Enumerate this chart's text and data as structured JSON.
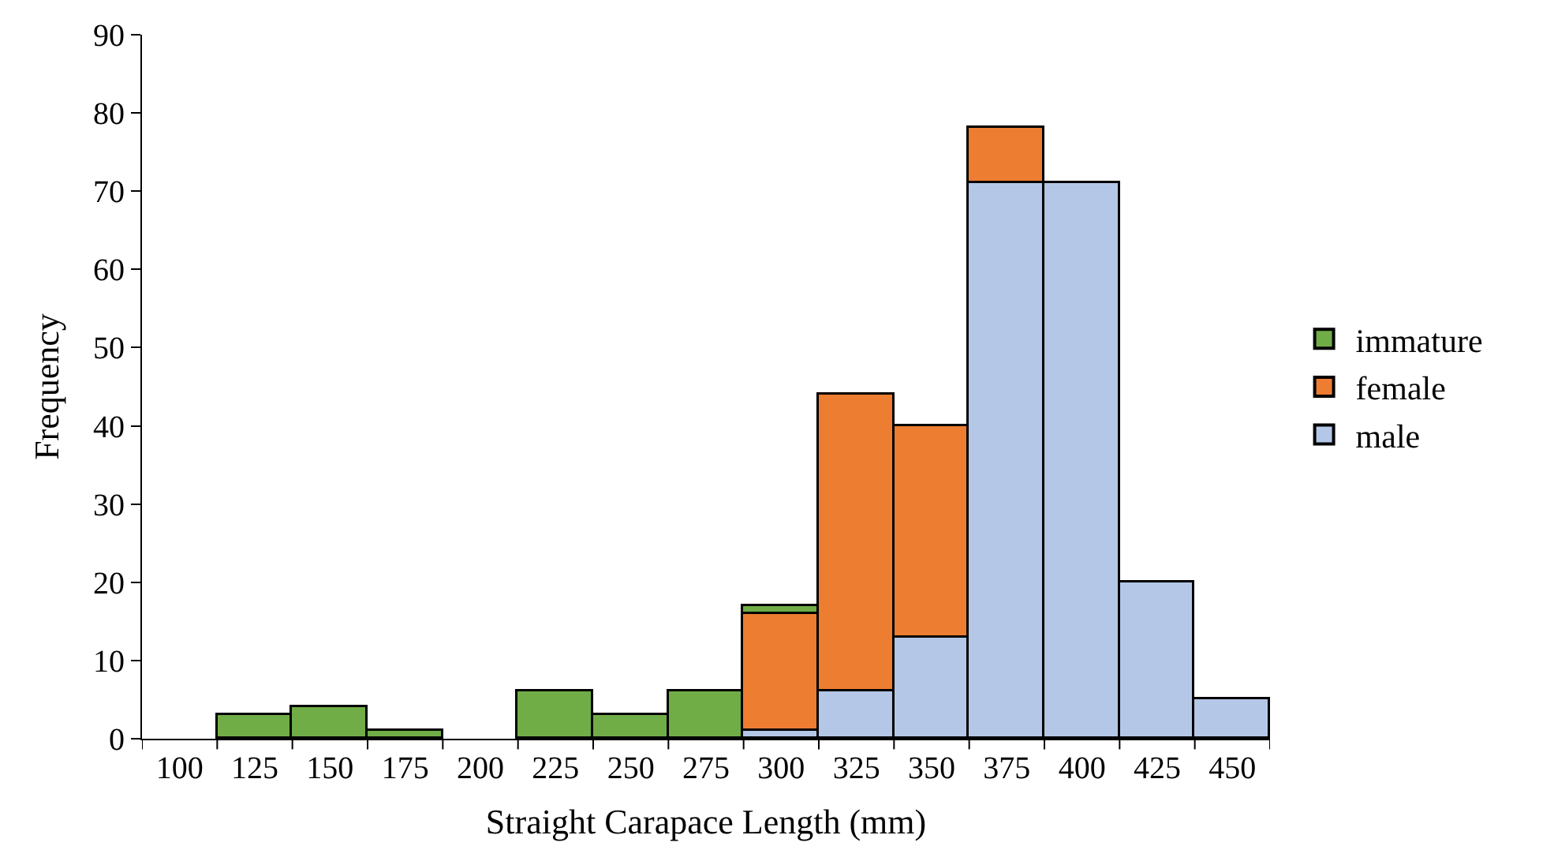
{
  "chart_data": {
    "type": "bar",
    "stacked": true,
    "xlabel": "Straight Carapace Length (mm)",
    "ylabel": "Frequency",
    "categories": [
      "100",
      "125",
      "150",
      "175",
      "200",
      "225",
      "250",
      "275",
      "300",
      "325",
      "350",
      "375",
      "400",
      "425",
      "450"
    ],
    "series": [
      {
        "name": "male",
        "color": "#b4c7e7",
        "values": [
          0,
          0,
          0,
          0,
          0,
          0,
          0,
          0,
          1,
          6,
          13,
          71,
          71,
          20,
          5
        ]
      },
      {
        "name": "female",
        "color": "#ed7d31",
        "values": [
          0,
          0,
          0,
          0,
          0,
          0,
          0,
          0,
          15,
          38,
          27,
          7,
          0,
          0,
          0
        ]
      },
      {
        "name": "immature",
        "color": "#70ad47",
        "values": [
          0,
          3,
          4,
          1,
          0,
          6,
          3,
          6,
          1,
          0,
          0,
          0,
          0,
          0,
          0
        ]
      }
    ],
    "ylim": [
      0,
      90
    ],
    "yticks": [
      0,
      10,
      20,
      30,
      40,
      50,
      60,
      70,
      80,
      90
    ],
    "grid": false,
    "legend": "right"
  }
}
